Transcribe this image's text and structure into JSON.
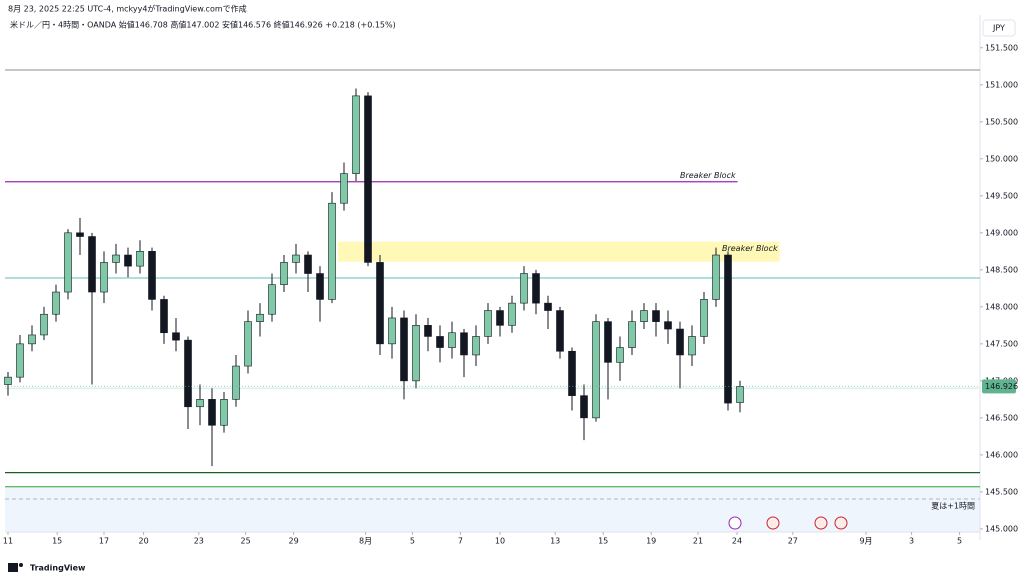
{
  "chart_data": {
    "type": "candlestick",
    "caption": "8月 23, 2025 22:25 UTC-4,  mckyy4がTradingView.comで作成",
    "title": "米ドル／円・4時間・OANDA 始値146.708 高値147.002 安値146.576 終値146.926 +0.218 (+0.15%)",
    "currency": "JPY",
    "brand": "TradingView",
    "session_note": "夏は+1時間",
    "up_color": "#7fc9a6",
    "down_color": "#131722",
    "open": [
      146.95,
      147.05,
      147.5,
      147.62,
      147.9,
      148.2,
      149.0,
      148.95,
      148.2,
      148.6,
      148.7,
      148.55,
      148.75,
      148.1,
      147.65,
      147.55,
      146.65,
      146.75,
      146.4,
      146.75,
      147.2,
      147.8,
      147.9,
      148.3,
      148.6,
      148.7,
      148.45,
      148.1,
      149.4,
      149.8,
      150.85,
      148.6,
      147.5,
      147.85,
      147.0,
      147.75,
      147.6,
      147.45,
      147.65,
      147.35,
      147.6,
      147.95,
      147.75,
      148.05,
      148.45,
      148.05,
      147.95,
      147.4,
      146.8,
      146.5,
      147.8,
      147.25,
      147.45,
      147.8,
      147.95,
      147.8,
      147.7,
      147.35,
      147.6,
      148.1,
      148.7,
      146.708
    ],
    "high": [
      147.12,
      147.62,
      147.75,
      148.0,
      148.3,
      149.05,
      149.2,
      149.0,
      148.75,
      148.85,
      148.8,
      148.9,
      148.8,
      148.15,
      147.85,
      147.6,
      146.95,
      146.9,
      146.85,
      147.35,
      147.95,
      148.05,
      148.45,
      148.7,
      148.85,
      148.75,
      148.55,
      149.55,
      149.95,
      150.95,
      150.9,
      148.7,
      148.0,
      147.95,
      147.9,
      147.85,
      147.75,
      147.8,
      147.7,
      147.75,
      148.05,
      148.0,
      148.15,
      148.55,
      148.5,
      148.15,
      148.0,
      147.45,
      146.95,
      147.9,
      147.85,
      147.6,
      147.95,
      148.05,
      148.05,
      147.95,
      147.8,
      147.75,
      148.2,
      148.8,
      148.75,
      147.002
    ],
    "low": [
      146.8,
      146.98,
      147.4,
      147.55,
      147.8,
      148.1,
      148.7,
      146.95,
      148.05,
      148.45,
      148.4,
      148.45,
      147.95,
      147.5,
      147.4,
      146.35,
      146.4,
      145.85,
      146.3,
      146.65,
      147.1,
      147.6,
      147.8,
      148.2,
      148.45,
      148.2,
      147.8,
      148.05,
      149.3,
      149.7,
      148.55,
      147.35,
      147.3,
      146.75,
      146.9,
      147.4,
      147.25,
      147.3,
      147.05,
      147.2,
      147.5,
      147.6,
      147.65,
      147.95,
      147.9,
      147.7,
      147.3,
      146.6,
      146.2,
      146.45,
      146.75,
      147.0,
      147.35,
      147.7,
      147.6,
      147.5,
      146.9,
      147.2,
      147.5,
      148.0,
      146.6,
      146.576
    ],
    "close": [
      147.05,
      147.5,
      147.62,
      147.9,
      148.2,
      149.0,
      148.95,
      148.2,
      148.6,
      148.7,
      148.55,
      148.75,
      148.1,
      147.65,
      147.55,
      146.65,
      146.75,
      146.4,
      146.75,
      147.2,
      147.8,
      147.9,
      148.3,
      148.6,
      148.7,
      148.45,
      148.1,
      149.4,
      149.8,
      150.85,
      148.6,
      147.5,
      147.85,
      147.0,
      147.75,
      147.6,
      147.45,
      147.65,
      147.35,
      147.6,
      147.95,
      147.75,
      148.05,
      148.45,
      148.05,
      147.95,
      147.4,
      146.8,
      146.5,
      147.8,
      147.25,
      147.45,
      147.8,
      147.95,
      147.8,
      147.7,
      147.35,
      147.6,
      148.1,
      148.7,
      146.7,
      146.926
    ],
    "last_price": 146.926,
    "last_color": "#5fb38f",
    "xlim": [
      -0.25,
      81
    ],
    "xticks": [
      {
        "value": 0,
        "label": "11"
      },
      {
        "value": 4.1,
        "label": "15"
      },
      {
        "value": 8,
        "label": "17"
      },
      {
        "value": 11.3,
        "label": "20"
      },
      {
        "value": 15.9,
        "label": "23"
      },
      {
        "value": 19.8,
        "label": "25"
      },
      {
        "value": 23.8,
        "label": "29"
      },
      {
        "value": 29.8,
        "label": "8月"
      },
      {
        "value": 33.7,
        "label": "5"
      },
      {
        "value": 37.7,
        "label": "7"
      },
      {
        "value": 41,
        "label": "10"
      },
      {
        "value": 45.6,
        "label": "13"
      },
      {
        "value": 49.6,
        "label": "15"
      },
      {
        "value": 53.6,
        "label": "19"
      },
      {
        "value": 57.5,
        "label": "21"
      },
      {
        "value": 60.75,
        "label": "24"
      },
      {
        "value": 65.4,
        "label": "27"
      },
      {
        "value": 71.5,
        "label": "9月"
      },
      {
        "value": 75.3,
        "label": "3"
      },
      {
        "value": 79.3,
        "label": "5"
      }
    ],
    "ylim": [
      144.85,
      151.74
    ],
    "yticks": [
      {
        "value": 145,
        "label": "145.000"
      },
      {
        "value": 145.5,
        "label": "145.500"
      },
      {
        "value": 146,
        "label": "146.000"
      },
      {
        "value": 146.5,
        "label": "146.500"
      },
      {
        "value": 147,
        "label": "147.000"
      },
      {
        "value": 147.5,
        "label": "147.500"
      },
      {
        "value": 148,
        "label": "148.000"
      },
      {
        "value": 148.5,
        "label": "148.500"
      },
      {
        "value": 149,
        "label": "149.000"
      },
      {
        "value": 149.5,
        "label": "149.500"
      },
      {
        "value": 150,
        "label": "150.000"
      },
      {
        "value": 150.5,
        "label": "150.500"
      },
      {
        "value": 151,
        "label": "151.000"
      },
      {
        "value": 151.5,
        "label": "151.500"
      }
    ],
    "levels": [
      {
        "value": 151.2,
        "color": "#a0a4ac"
      },
      {
        "value": 149.69,
        "color": "#9c27b0",
        "label": "Breaker Block",
        "x_end": 60.8
      },
      {
        "value": 148.39,
        "color": "#80cbc4"
      },
      {
        "value": 146.9,
        "color": "#d6efec"
      },
      {
        "value": 145.76,
        "color": "#1b5e20"
      },
      {
        "value": 145.57,
        "color": "#66bb6a"
      }
    ],
    "zone": {
      "low": 148.61,
      "high": 148.88,
      "x_start": 27.5,
      "x_end": 64.3,
      "label": "Breaker Block",
      "color": "#fff59d"
    }
  }
}
